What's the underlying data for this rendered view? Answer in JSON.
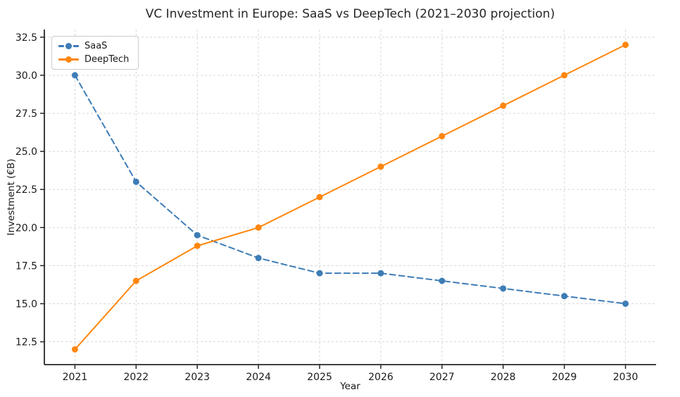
{
  "chart_data": {
    "type": "line",
    "title": "VC Investment in Europe: SaaS vs DeepTech (2021–2030 projection)",
    "xlabel": "Year",
    "ylabel": "Investment (€B)",
    "x": [
      2021,
      2022,
      2023,
      2024,
      2025,
      2026,
      2027,
      2028,
      2029,
      2030
    ],
    "x_tick_labels": [
      "2021",
      "2022",
      "2023",
      "2024",
      "2025",
      "2026",
      "2027",
      "2028",
      "2029",
      "2030"
    ],
    "y_ticks": [
      12.5,
      15.0,
      17.5,
      20.0,
      22.5,
      25.0,
      27.5,
      30.0,
      32.5
    ],
    "y_tick_labels": [
      "12.5",
      "15.0",
      "17.5",
      "20.0",
      "22.5",
      "25.0",
      "27.5",
      "30.0",
      "32.5"
    ],
    "xlim": [
      2020.5,
      2030.5
    ],
    "ylim": [
      11,
      33
    ],
    "grid": true,
    "grid_style": "dashed",
    "legend_position": "upper left",
    "series": [
      {
        "name": "SaaS",
        "values": [
          30,
          23,
          19.5,
          18,
          17,
          17,
          16.5,
          16,
          15.5,
          15
        ],
        "color": "#3d7cb6",
        "line_style": "dashed",
        "marker": "circle"
      },
      {
        "name": "DeepTech",
        "values": [
          12,
          16.5,
          18.8,
          20,
          22,
          24,
          26,
          28,
          30,
          32
        ],
        "color": "#ff860d",
        "line_style": "solid",
        "marker": "circle"
      }
    ],
    "colors": {
      "grid": "#d7d7d7",
      "spine": "#262626",
      "text": "#1a1a1a"
    }
  }
}
